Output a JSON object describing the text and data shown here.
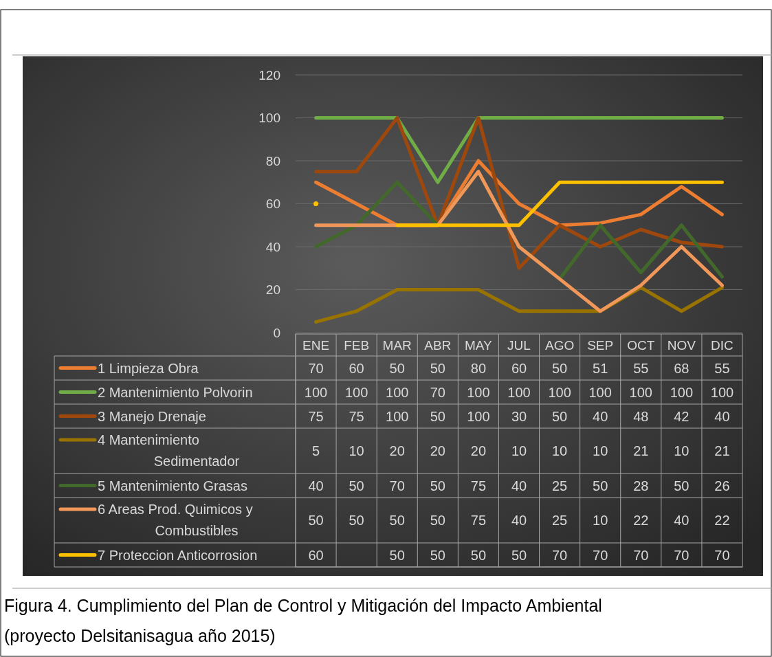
{
  "chart_data": {
    "type": "line",
    "categories": [
      "ENE",
      "FEB",
      "MAR",
      "ABR",
      "MAY",
      "JUL",
      "AGO",
      "SEP",
      "OCT",
      "NOV",
      "DIC"
    ],
    "series": [
      {
        "name": "1 Limpieza Obra",
        "color": "#ed7d31",
        "values": [
          70,
          60,
          50,
          50,
          80,
          60,
          50,
          51,
          55,
          68,
          55
        ]
      },
      {
        "name": "2 Mantenimiento Polvorin",
        "color": "#70ad47",
        "values": [
          100,
          100,
          100,
          70,
          100,
          100,
          100,
          100,
          100,
          100,
          100
        ]
      },
      {
        "name": "3 Manejo Drenaje",
        "color": "#9e480e",
        "values": [
          75,
          75,
          100,
          50,
          100,
          30,
          50,
          40,
          48,
          42,
          40
        ]
      },
      {
        "name": "4 Mantenimiento Sedimentador",
        "color": "#997300",
        "values": [
          5,
          10,
          20,
          20,
          20,
          10,
          10,
          10,
          21,
          10,
          21
        ]
      },
      {
        "name": "5 Mantenimiento Grasas",
        "color": "#43682b",
        "values": [
          40,
          50,
          70,
          50,
          75,
          40,
          25,
          50,
          28,
          50,
          26
        ]
      },
      {
        "name": "6 Areas Prod. Quimicos y Combustibles",
        "color": "#f1975a",
        "values": [
          50,
          50,
          50,
          50,
          75,
          40,
          25,
          10,
          22,
          40,
          22
        ]
      },
      {
        "name": "7 Proteccion Anticorrosion",
        "color": "#ffc000",
        "values": [
          60,
          null,
          50,
          50,
          50,
          50,
          70,
          70,
          70,
          70,
          70
        ]
      }
    ],
    "ylim": [
      0,
      120
    ],
    "yticks": [
      0,
      20,
      40,
      60,
      80,
      100,
      120
    ],
    "grid": "y",
    "legend": "bottom",
    "data_labels": true,
    "marker": "none",
    "line_style": "solid",
    "annotations": [
      "Figura 4. Cumplimiento del Plan de Control y Mitigación del Impacto Ambiental (proyecto Delsitanisagua año 2015)"
    ]
  }
}
